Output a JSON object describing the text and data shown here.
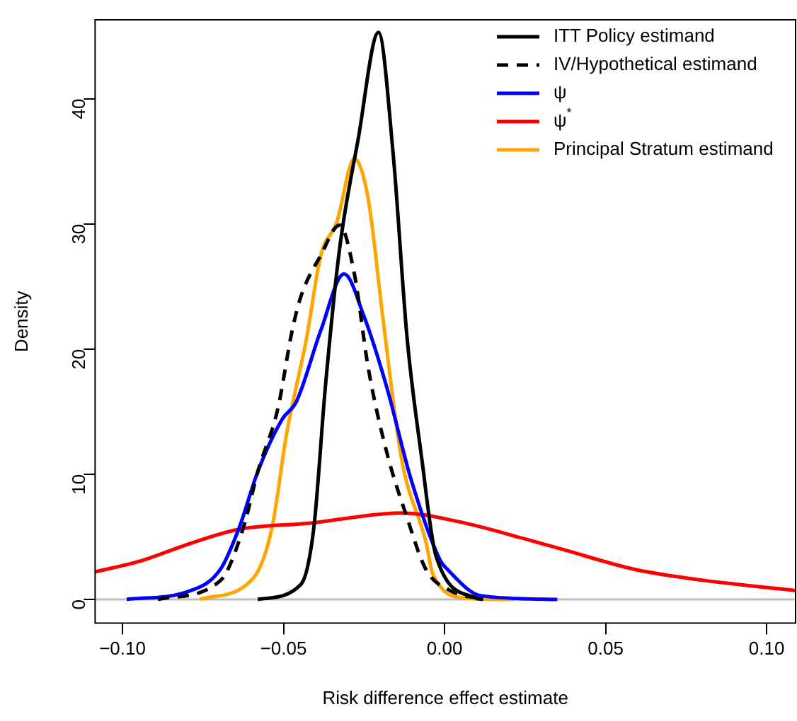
{
  "chart_data": {
    "type": "line",
    "xlabel": "Risk difference effect estimate",
    "ylabel": "Density",
    "xlim": [
      -0.1085,
      0.109
    ],
    "xticks": [
      {
        "value": -0.1,
        "label": "−0.10"
      },
      {
        "value": -0.05,
        "label": "−0.05"
      },
      {
        "value": 0,
        "label": "0.00"
      },
      {
        "value": 0.05,
        "label": "0.05"
      },
      {
        "value": 0.1,
        "label": "0.10"
      }
    ],
    "ylim": [
      -1.9,
      46.3
    ],
    "yticks": [
      0,
      10,
      20,
      30,
      40
    ],
    "grid": false,
    "legend": "top right",
    "marker": "none",
    "ref_lines": [
      {
        "axis": "y",
        "value": 0,
        "color": "#bebebe"
      }
    ],
    "series": [
      {
        "name": "ITT Policy estimand",
        "color": "#000000",
        "line_style": "solid",
        "x": [
          -0.058,
          -0.0446,
          -0.0406,
          -0.037,
          -0.0326,
          -0.0268,
          -0.0205,
          -0.016,
          -0.0116,
          -0.0071,
          -0.0027,
          0.0098,
          0.012
        ],
        "values": [
          0,
          1.2,
          5.7,
          17,
          28,
          36.8,
          45.3,
          35.7,
          20.8,
          11.3,
          3.5,
          0.1,
          0
        ]
      },
      {
        "name": "IV/Hypothetical estimand",
        "color": "#000000",
        "line_style": "dashed",
        "x": [
          -0.089,
          -0.0696,
          -0.0625,
          -0.058,
          -0.0518,
          -0.0473,
          -0.0446,
          -0.0384,
          -0.0326,
          -0.028,
          -0.0237,
          -0.018,
          -0.0116,
          -0.0058,
          0.0018,
          0.012
        ],
        "values": [
          0,
          1.5,
          5.7,
          10.2,
          15.2,
          21.5,
          24.2,
          27.5,
          29.9,
          26,
          18.5,
          11.8,
          6.5,
          2.4,
          0.7,
          0
        ]
      },
      {
        "name": "ψ",
        "color": "#0000ff",
        "line_style": "solid",
        "x": [
          -0.0987,
          -0.08,
          -0.0696,
          -0.0638,
          -0.058,
          -0.0504,
          -0.046,
          -0.0384,
          -0.0312,
          -0.025,
          -0.018,
          -0.0103,
          -0.0013,
          0.0009,
          0.0112,
          0.035
        ],
        "values": [
          0,
          0.6,
          2.4,
          5.7,
          10.2,
          14.4,
          15.8,
          21.5,
          26,
          22.6,
          17,
          9.5,
          3.1,
          2.4,
          0.3,
          0
        ]
      },
      {
        "name": "ψ$^{*}$",
        "color": "#ff0000",
        "line_style": "solid",
        "x": [
          -0.1085,
          -0.094,
          -0.0786,
          -0.0638,
          -0.0415,
          -0.0134,
          0.0045,
          0.0254,
          0.0366,
          0.059,
          0.081,
          0.109
        ],
        "values": [
          2.2,
          3.1,
          4.5,
          5.6,
          6.1,
          6.9,
          6.2,
          4.8,
          4.0,
          2.4,
          1.5,
          0.7
        ]
      },
      {
        "name": "Principal Stratum estimand",
        "color": "#ffa500",
        "line_style": "solid",
        "x": [
          -0.076,
          -0.0594,
          -0.0536,
          -0.049,
          -0.0429,
          -0.0384,
          -0.0335,
          -0.028,
          -0.0237,
          -0.0192,
          -0.0134,
          -0.0058,
          -0.0036,
          0.0067,
          0.022
        ],
        "values": [
          0,
          1.7,
          5.7,
          13.3,
          20.8,
          27.5,
          30.1,
          35.2,
          32,
          22.6,
          11.3,
          4.6,
          2,
          0.1,
          0
        ]
      }
    ]
  }
}
